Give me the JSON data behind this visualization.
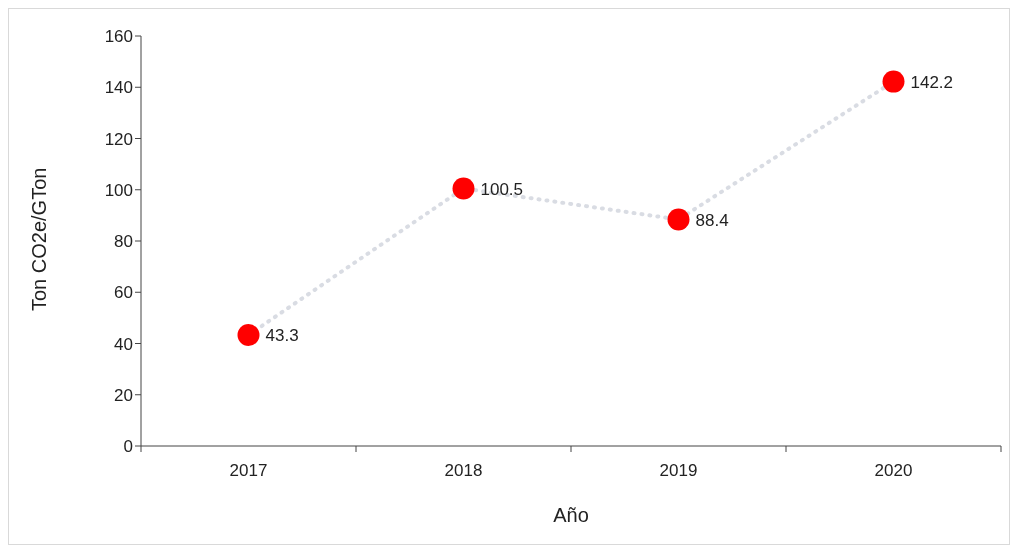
{
  "chart_data": {
    "type": "line",
    "xlabel": "Año",
    "ylabel": "Ton CO2e/GTon",
    "categories": [
      "2017",
      "2018",
      "2019",
      "2020"
    ],
    "series": [
      {
        "color": "#d9dce3",
        "colors": [
          "#ff0000",
          "#ff0000",
          "#ff0000",
          "#ff0000"
        ],
        "values": [
          43.3,
          100.5,
          88.4,
          142.2
        ]
      }
    ],
    "ylim": [
      0,
      160
    ],
    "yticks": [
      0,
      20,
      40,
      60,
      80,
      100,
      120,
      140,
      160
    ],
    "grid": false,
    "legend": false,
    "marker": "circle",
    "line_style": "dotted",
    "data_labels": true
  }
}
